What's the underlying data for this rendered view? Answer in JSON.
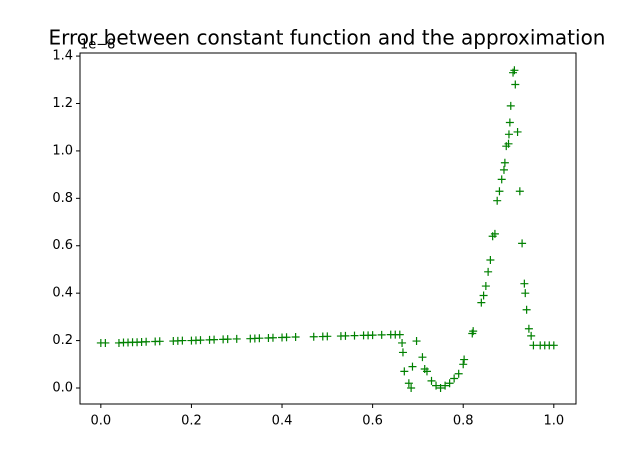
{
  "chart_data": {
    "type": "scatter",
    "title": "Error between constant function and the approximation",
    "y_offset_label": "1e−8",
    "color": "#008000",
    "marker": "+",
    "x": [
      0.0,
      0.01,
      0.04,
      0.05,
      0.06,
      0.07,
      0.08,
      0.09,
      0.1,
      0.12,
      0.13,
      0.16,
      0.17,
      0.18,
      0.2,
      0.21,
      0.22,
      0.24,
      0.25,
      0.27,
      0.28,
      0.3,
      0.33,
      0.34,
      0.35,
      0.37,
      0.38,
      0.4,
      0.41,
      0.43,
      0.47,
      0.49,
      0.5,
      0.53,
      0.54,
      0.56,
      0.58,
      0.59,
      0.6,
      0.62,
      0.64,
      0.65,
      0.66,
      0.665,
      0.667,
      0.67,
      0.68,
      0.685,
      0.688,
      0.697,
      0.71,
      0.715,
      0.72,
      0.73,
      0.74,
      0.75,
      0.76,
      0.77,
      0.78,
      0.79,
      0.8,
      0.802,
      0.82,
      0.822,
      0.84,
      0.845,
      0.85,
      0.855,
      0.86,
      0.865,
      0.87,
      0.875,
      0.88,
      0.885,
      0.89,
      0.892,
      0.895,
      0.9,
      0.901,
      0.903,
      0.905,
      0.91,
      0.913,
      0.915,
      0.92,
      0.925,
      0.93,
      0.935,
      0.937,
      0.94,
      0.945,
      0.95,
      0.955,
      0.97,
      0.98,
      0.99,
      1.0
    ],
    "values": [
      0.19,
      0.19,
      0.19,
      0.192,
      0.192,
      0.193,
      0.193,
      0.194,
      0.195,
      0.196,
      0.197,
      0.198,
      0.199,
      0.2,
      0.2,
      0.201,
      0.202,
      0.203,
      0.204,
      0.205,
      0.206,
      0.207,
      0.208,
      0.209,
      0.21,
      0.211,
      0.212,
      0.213,
      0.214,
      0.215,
      0.216,
      0.217,
      0.218,
      0.219,
      0.22,
      0.221,
      0.222,
      0.222,
      0.223,
      0.224,
      0.225,
      0.225,
      0.225,
      0.19,
      0.15,
      0.07,
      0.02,
      0.0,
      0.09,
      0.198,
      0.13,
      0.08,
      0.07,
      0.03,
      0.01,
      0.0,
      0.01,
      0.02,
      0.04,
      0.06,
      0.1,
      0.12,
      0.23,
      0.24,
      0.36,
      0.39,
      0.43,
      0.49,
      0.54,
      0.64,
      0.65,
      0.79,
      0.83,
      0.88,
      0.92,
      0.95,
      1.02,
      1.03,
      1.07,
      1.12,
      1.19,
      1.33,
      1.34,
      1.28,
      1.08,
      0.83,
      0.61,
      0.44,
      0.4,
      0.33,
      0.25,
      0.22,
      0.18,
      0.18,
      0.18,
      0.18,
      0.18
    ],
    "xlim": [
      -0.046,
      1.049
    ],
    "ylim": [
      -0.0675,
      1.413
    ],
    "xticks": [
      {
        "value": 0,
        "label": "0.0"
      },
      0.2,
      0.4,
      0.6,
      0.8,
      {
        "value": 1,
        "label": "1.0"
      }
    ],
    "yticks": [
      {
        "value": 0,
        "label": "0.0"
      },
      0.2,
      0.4,
      0.6,
      0.8,
      {
        "value": 1,
        "label": "1.0"
      },
      1.2,
      1.4
    ],
    "grid": false
  }
}
